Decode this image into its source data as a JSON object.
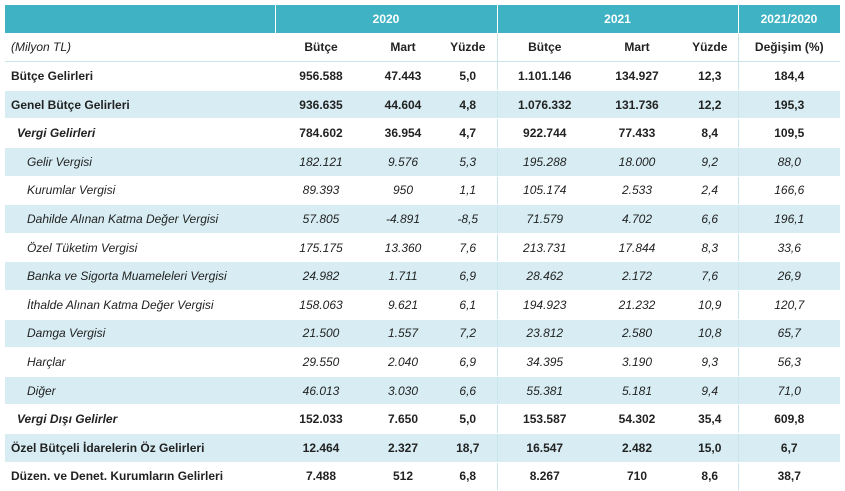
{
  "years": {
    "y2020": "2020",
    "y2021": "2021",
    "change": "2021/2020"
  },
  "columns": {
    "unit": "(Milyon TL)",
    "budget2020": "Bütçe",
    "march2020": "Mart",
    "pct2020": "Yüzde",
    "budget2021": "Bütçe",
    "march2021": "Mart",
    "pct2021": "Yüzde",
    "change": "Değişim (%)"
  },
  "rows": [
    {
      "label": "Bütçe Gelirleri",
      "b20": "956.588",
      "m20": "47.443",
      "p20": "5,0",
      "b21": "1.101.146",
      "m21": "134.927",
      "p21": "12,3",
      "chg": "184,4"
    },
    {
      "label": "Genel Bütçe Gelirleri",
      "b20": "936.635",
      "m20": "44.604",
      "p20": "4,8",
      "b21": "1.076.332",
      "m21": "131.736",
      "p21": "12,2",
      "chg": "195,3"
    },
    {
      "label": "Vergi Gelirleri",
      "b20": "784.602",
      "m20": "36.954",
      "p20": "4,7",
      "b21": "922.744",
      "m21": "77.433",
      "p21": "8,4",
      "chg": "109,5"
    },
    {
      "label": "Gelir Vergisi",
      "b20": "182.121",
      "m20": "9.576",
      "p20": "5,3",
      "b21": "195.288",
      "m21": "18.000",
      "p21": "9,2",
      "chg": "88,0"
    },
    {
      "label": "Kurumlar Vergisi",
      "b20": "89.393",
      "m20": "950",
      "p20": "1,1",
      "b21": "105.174",
      "m21": "2.533",
      "p21": "2,4",
      "chg": "166,6"
    },
    {
      "label": "Dahilde Alınan Katma Değer Vergisi",
      "b20": "57.805",
      "m20": "-4.891",
      "p20": "-8,5",
      "b21": "71.579",
      "m21": "4.702",
      "p21": "6,6",
      "chg": "196,1"
    },
    {
      "label": "Özel Tüketim Vergisi",
      "b20": "175.175",
      "m20": "13.360",
      "p20": "7,6",
      "b21": "213.731",
      "m21": "17.844",
      "p21": "8,3",
      "chg": "33,6"
    },
    {
      "label": "Banka ve Sigorta Muameleleri Vergisi",
      "b20": "24.982",
      "m20": "1.711",
      "p20": "6,9",
      "b21": "28.462",
      "m21": "2.172",
      "p21": "7,6",
      "chg": "26,9"
    },
    {
      "label": "İthalde Alınan Katma Değer Vergisi",
      "b20": "158.063",
      "m20": "9.621",
      "p20": "6,1",
      "b21": "194.923",
      "m21": "21.232",
      "p21": "10,9",
      "chg": "120,7"
    },
    {
      "label": "Damga Vergisi",
      "b20": "21.500",
      "m20": "1.557",
      "p20": "7,2",
      "b21": "23.812",
      "m21": "2.580",
      "p21": "10,8",
      "chg": "65,7"
    },
    {
      "label": "Harçlar",
      "b20": "29.550",
      "m20": "2.040",
      "p20": "6,9",
      "b21": "34.395",
      "m21": "3.190",
      "p21": "9,3",
      "chg": "56,3"
    },
    {
      "label": "Diğer",
      "b20": "46.013",
      "m20": "3.030",
      "p20": "6,6",
      "b21": "55.381",
      "m21": "5.181",
      "p21": "9,4",
      "chg": "71,0"
    },
    {
      "label": "Vergi Dışı Gelirler",
      "b20": "152.033",
      "m20": "7.650",
      "p20": "5,0",
      "b21": "153.587",
      "m21": "54.302",
      "p21": "35,4",
      "chg": "609,8"
    },
    {
      "label": "Özel Bütçeli İdarelerin Öz Gelirleri",
      "b20": "12.464",
      "m20": "2.327",
      "p20": "18,7",
      "b21": "16.547",
      "m21": "2.482",
      "p21": "15,0",
      "chg": "6,7"
    },
    {
      "label": "Düzen. ve Denet. Kurumların Gelirleri",
      "b20": "7.488",
      "m20": "512",
      "p20": "6,8",
      "b21": "8.267",
      "m21": "710",
      "p21": "8,6",
      "chg": "38,7"
    }
  ]
}
